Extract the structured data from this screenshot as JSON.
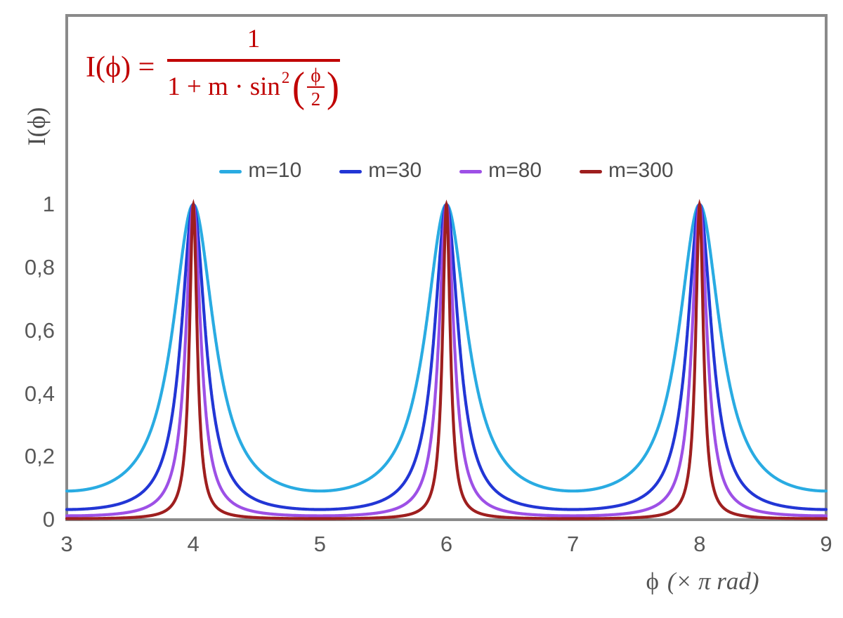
{
  "figure": {
    "formula": {
      "lhs": "I(ϕ) =",
      "numerator": "1",
      "denom_prefix": "1 + m · sin",
      "denom_exp": "2",
      "open_paren": "(",
      "close_paren": ")",
      "inner_num": "ϕ",
      "inner_den": "2",
      "color": "#C00000"
    },
    "y_axis_title": "I(ϕ)",
    "x_axis_title": {
      "phi": "ϕ",
      "unit": "(× π rad)"
    }
  },
  "chart_data": {
    "type": "line",
    "title": "",
    "formula": "I(ϕ) = 1 / (1 + m·sin²(ϕ/2)), ϕ expressed in units of π rad",
    "xlabel": "ϕ (× π rad)",
    "ylabel": "I(ϕ)",
    "xlim": [
      3,
      9
    ],
    "ylim": [
      0,
      1.6
    ],
    "grid": false,
    "legend_position": "top-center",
    "axis_color": "#8a8a8a",
    "tick_text_color": "#595959",
    "x_ticks": [
      {
        "value": 3,
        "label": "3"
      },
      {
        "value": 4,
        "label": "4"
      },
      {
        "value": 5,
        "label": "5"
      },
      {
        "value": 6,
        "label": "6"
      },
      {
        "value": 7,
        "label": "7"
      },
      {
        "value": 8,
        "label": "8"
      },
      {
        "value": 9,
        "label": "9"
      }
    ],
    "y_ticks": [
      {
        "value": 0,
        "label": "0"
      },
      {
        "value": 0.2,
        "label": "0,2"
      },
      {
        "value": 0.4,
        "label": "0,4"
      },
      {
        "value": 0.6,
        "label": "0,6"
      },
      {
        "value": 0.8,
        "label": "0,8"
      },
      {
        "value": 1,
        "label": "1"
      }
    ],
    "series": [
      {
        "name": "m=10",
        "m": 10,
        "color": "#29ABE2",
        "peak_value": 1,
        "min_value": 0.091
      },
      {
        "name": "m=30",
        "m": 30,
        "color": "#2236D5",
        "peak_value": 1,
        "min_value": 0.032
      },
      {
        "name": "m=80",
        "m": 80,
        "color": "#9D50E6",
        "peak_value": 1,
        "min_value": 0.012
      },
      {
        "name": "m=300",
        "m": 300,
        "color": "#9E1F1F",
        "peak_value": 1,
        "min_value": 0.003
      }
    ],
    "peaks_at_x": [
      4,
      6,
      8
    ],
    "x_unit": "π rad"
  }
}
